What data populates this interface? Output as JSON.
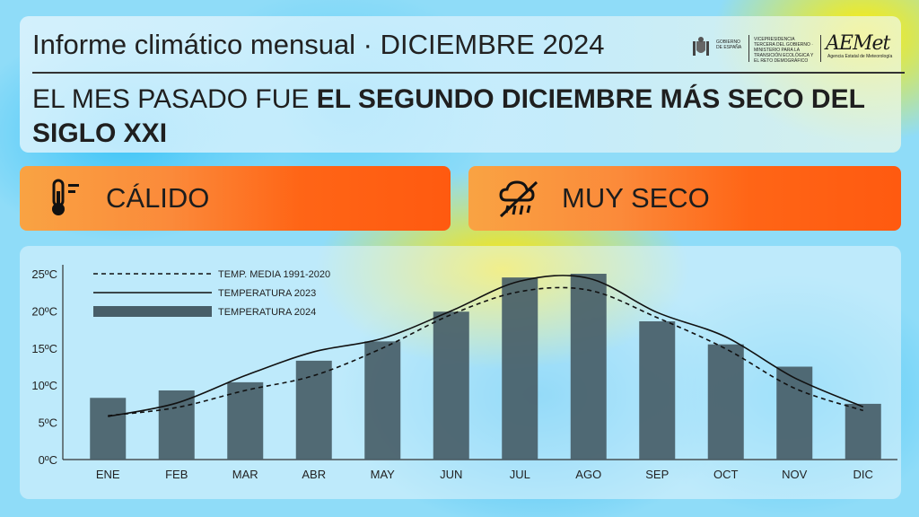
{
  "header": {
    "title": "Informe climático mensual · DICIEMBRE 2024",
    "headline_plain": "EL MES PASADO FUE ",
    "headline_bold": "EL SEGUNDO DICIEMBRE MÁS SECO DEL SIGLO XXI"
  },
  "logos": {
    "gov_text": "GOBIERNO DE ESPAÑA",
    "ministry_text": "VICEPRESIDENCIA TERCERA DEL GOBIERNO · MINISTERIO PARA LA TRANSICIÓN ECOLÓGICA Y EL RETO DEMOGRÁFICO",
    "aemet": "AEMet",
    "aemet_sub": "Agencia Estatal de Meteorología"
  },
  "badges": {
    "temperature": {
      "label": "CÁLIDO",
      "icon": "thermometer-icon"
    },
    "precipitation": {
      "label": "MUY SECO",
      "icon": "no-rain-cloud-icon"
    }
  },
  "colors": {
    "badge_orange": "#ff6516",
    "bar": "#485e68",
    "text": "#1f1f1f"
  },
  "chart_data": {
    "type": "bar",
    "categories": [
      "ENE",
      "FEB",
      "MAR",
      "ABR",
      "MAY",
      "JUN",
      "JUL",
      "AGO",
      "SEP",
      "OCT",
      "NOV",
      "DIC"
    ],
    "series": [
      {
        "name": "TEMPERATURA 2024",
        "type": "bar",
        "values": [
          8.3,
          9.3,
          10.4,
          13.3,
          15.9,
          19.9,
          24.5,
          25.0,
          18.6,
          15.5,
          12.5,
          7.5
        ]
      },
      {
        "name": "TEMPERATURA 2023",
        "type": "line",
        "style": "solid",
        "values": [
          5.8,
          7.6,
          11.3,
          14.5,
          16.3,
          20.0,
          24.0,
          24.4,
          19.8,
          16.5,
          11.0,
          7.1
        ]
      },
      {
        "name": "TEMP. MEDIA 1991-2020",
        "type": "line",
        "style": "dashed",
        "values": [
          5.9,
          7.0,
          9.3,
          11.3,
          15.0,
          19.5,
          22.6,
          22.8,
          19.1,
          14.9,
          9.6,
          6.6
        ]
      }
    ],
    "yticks": [
      "0ºC",
      "5ºC",
      "10ºC",
      "15ºC",
      "20ºC",
      "25ºC"
    ],
    "ylim": [
      0,
      25
    ],
    "legend_position": "top-left"
  }
}
